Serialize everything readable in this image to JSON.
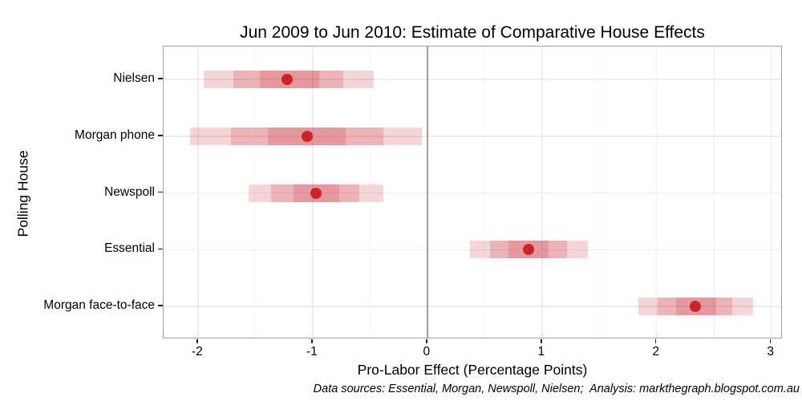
{
  "title": "Jun 2009 to Jun 2010: Estimate of Comparative House Effects",
  "caption": "Data sources: Essential, Morgan, Newspoll, Nielsen;  Analysis: markthegraph.blogspot.com.au",
  "chart_data": {
    "type": "interval-dot",
    "orientation": "horizontal",
    "title": "Jun 2009 to Jun 2010: Estimate of Comparative House Effects",
    "xlabel": "Pro-Labor Effect (Percentage Points)",
    "ylabel": "Polling House",
    "xlim": [
      -2.3,
      3.1
    ],
    "x_major_ticks": [
      -2,
      -1,
      0,
      1,
      2,
      3
    ],
    "x_minor_ticks": [
      -1.5,
      -0.5,
      0.5,
      1.5,
      2.5
    ],
    "zero_line": 0,
    "grid": "major+minor vertical, major horizontal per category",
    "legend": "none",
    "categories": [
      "Nielsen",
      "Morgan phone",
      "Newspoll",
      "Essential",
      "Morgan face-to-face"
    ],
    "series": [
      {
        "name": "Nielsen",
        "point": -1.22,
        "inner": [
          -1.46,
          -0.94
        ],
        "middle": [
          -1.69,
          -0.73
        ],
        "outer": [
          -1.95,
          -0.47
        ]
      },
      {
        "name": "Morgan phone",
        "point": -1.05,
        "inner": [
          -1.39,
          -0.71
        ],
        "middle": [
          -1.71,
          -0.38
        ],
        "outer": [
          -2.07,
          -0.05
        ]
      },
      {
        "name": "Newspoll",
        "point": -0.97,
        "inner": [
          -1.17,
          -0.77
        ],
        "middle": [
          -1.36,
          -0.59
        ],
        "outer": [
          -1.56,
          -0.38
        ]
      },
      {
        "name": "Essential",
        "point": 0.88,
        "inner": [
          0.71,
          1.06
        ],
        "middle": [
          0.55,
          1.22
        ],
        "outer": [
          0.37,
          1.4
        ]
      },
      {
        "name": "Morgan face-to-face",
        "point": 2.34,
        "inner": [
          2.17,
          2.52
        ],
        "middle": [
          2.01,
          2.66
        ],
        "outer": [
          1.84,
          2.84
        ]
      }
    ],
    "colors": {
      "band_layer": "rgba(201,33,44,0.185)",
      "point": "#c9252b",
      "zero_line": "#9e9e9e",
      "grid_major": "#ececec",
      "grid_minor": "#f5f5f5",
      "panel_border": "#a0a0a0",
      "tick": "#222222",
      "text": "#000000"
    }
  }
}
